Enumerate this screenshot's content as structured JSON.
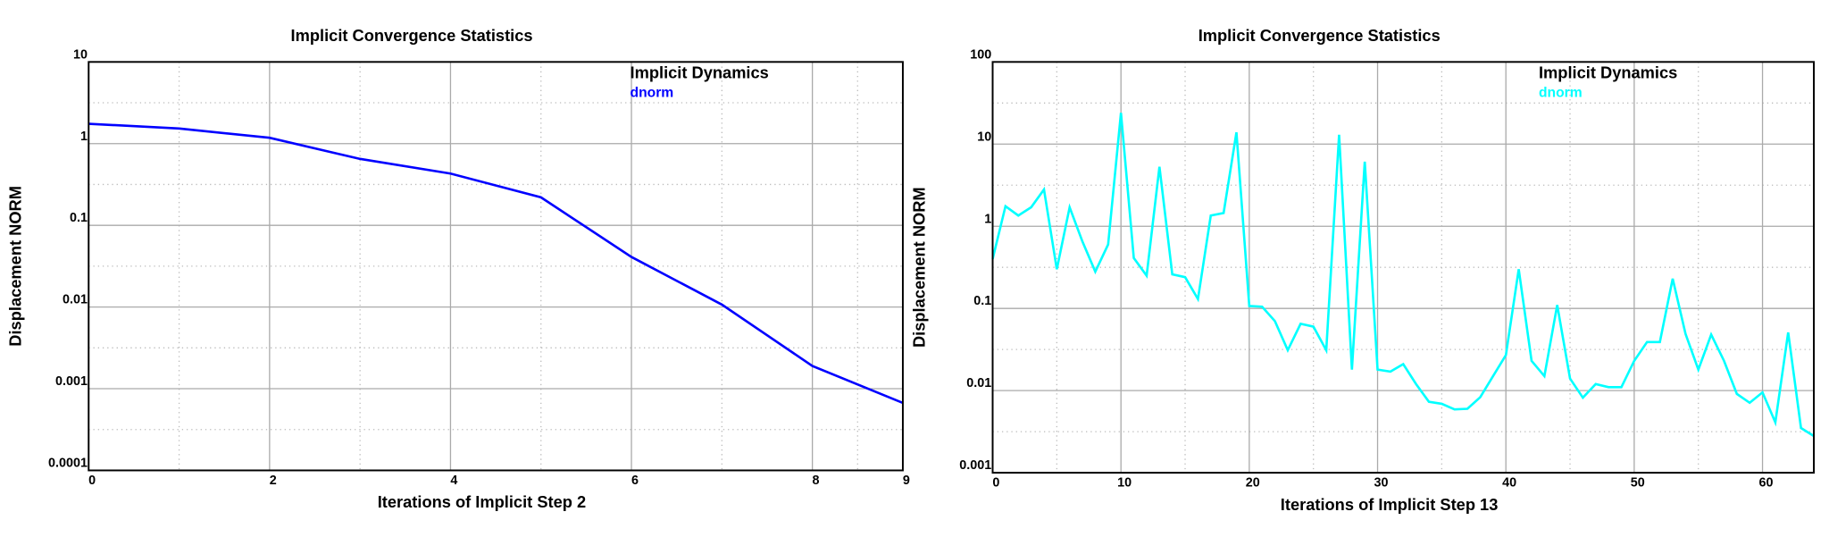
{
  "chart_data": [
    {
      "type": "line",
      "title": "Implicit Convergence Statistics",
      "x_label": "Iterations of Implicit Step 2",
      "y_label": "Displacement NORM",
      "legend_title": "Implicit Dynamics",
      "log_y": true,
      "grid": true,
      "x": [
        0,
        1,
        2,
        3,
        4,
        5,
        6,
        7,
        8,
        9
      ],
      "series": [
        {
          "name": "dnorm",
          "color": "#0000ff",
          "values": [
            1.75,
            1.53,
            1.18,
            0.65,
            0.43,
            0.22,
            0.041,
            0.0107,
            0.0019,
            0.00067
          ]
        }
      ],
      "xlim": [
        0,
        9
      ],
      "xticks": [
        0,
        2,
        4,
        6,
        8,
        9
      ],
      "ylim": [
        0.0001,
        10
      ],
      "yticks": [
        10,
        1,
        0.1,
        0.01,
        0.001,
        0.0001
      ]
    },
    {
      "type": "line",
      "title": "Implicit Convergence Statistics",
      "x_label": "Iterations of Implicit Step 13",
      "y_label": "Displacement NORM",
      "legend_title": "Implicit Dynamics",
      "log_y": true,
      "grid": true,
      "x": [
        0,
        1,
        2,
        3,
        4,
        5,
        6,
        7,
        8,
        9,
        10,
        11,
        12,
        13,
        14,
        15,
        16,
        17,
        18,
        19,
        20,
        21,
        22,
        23,
        24,
        25,
        26,
        27,
        28,
        29,
        30,
        31,
        32,
        33,
        34,
        35,
        36,
        37,
        38,
        39,
        40,
        41,
        42,
        43,
        44,
        45,
        46,
        47,
        48,
        49,
        50,
        51,
        52,
        53,
        54,
        55,
        56,
        57,
        58,
        59,
        60,
        61,
        62,
        63,
        64
      ],
      "series": [
        {
          "name": "dnorm",
          "color": "#00ffff",
          "values": [
            0.4,
            1.75,
            1.35,
            1.7,
            2.8,
            0.3,
            1.7,
            0.65,
            0.28,
            0.6,
            24,
            0.41,
            0.25,
            5.3,
            0.26,
            0.24,
            0.13,
            1.35,
            1.45,
            13.9,
            0.107,
            0.105,
            0.07,
            0.031,
            0.065,
            0.06,
            0.031,
            13,
            0.018,
            6.1,
            0.018,
            0.017,
            0.021,
            0.012,
            0.0073,
            0.0069,
            0.0059,
            0.006,
            0.0083,
            0.015,
            0.027,
            0.3,
            0.023,
            0.015,
            0.11,
            0.014,
            0.0082,
            0.012,
            0.011,
            0.011,
            0.023,
            0.039,
            0.039,
            0.23,
            0.049,
            0.018,
            0.048,
            0.023,
            0.0091,
            0.0071,
            0.0095,
            0.0041,
            0.051,
            0.0035,
            0.0028
          ]
        }
      ],
      "xlim": [
        0,
        64
      ],
      "xticks": [
        0,
        10,
        20,
        30,
        40,
        50,
        60
      ],
      "ylim": [
        0.001,
        100
      ],
      "yticks": [
        100,
        10,
        1,
        0.1,
        0.01,
        0.001
      ]
    }
  ]
}
